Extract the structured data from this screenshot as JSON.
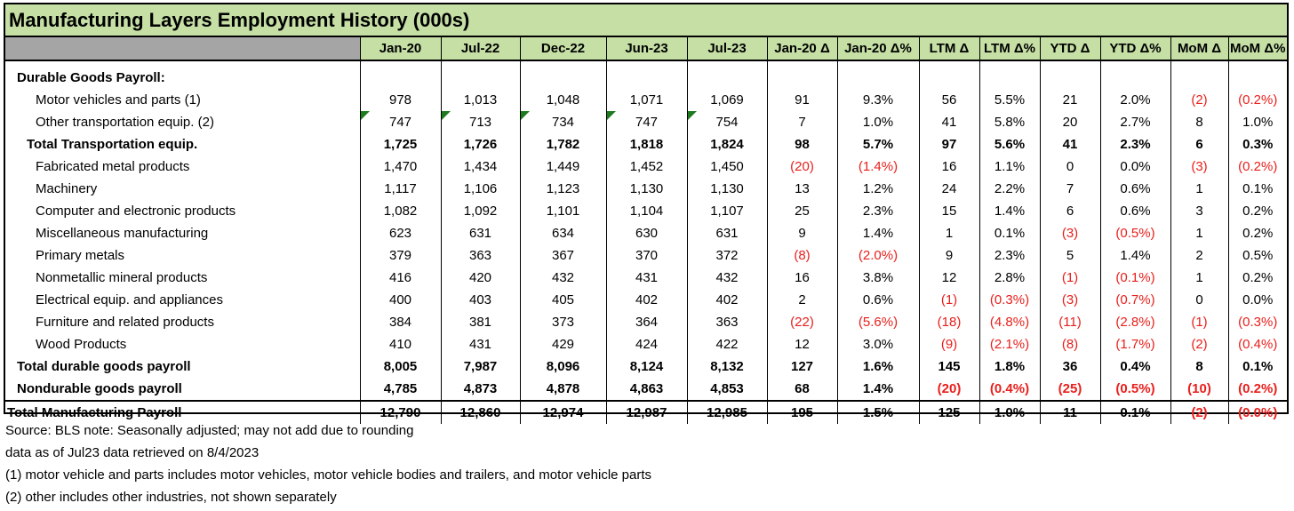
{
  "title": "Manufacturing Layers Employment History (000s)",
  "columns": [
    "Jan-20",
    "Jul-22",
    "Dec-22",
    "Jun-23",
    "Jul-23",
    "Jan-20 Δ",
    "Jan-20 Δ%",
    "LTM Δ",
    "LTM Δ%",
    "YTD Δ",
    "YTD Δ%",
    "MoM Δ",
    "MoM Δ%"
  ],
  "section_label": "Durable Goods Payroll:",
  "rows": [
    {
      "label": "Motor vehicles and parts (1)",
      "values": [
        "978",
        "1,013",
        "1,048",
        "1,071",
        "1,069",
        "91",
        "9.3%",
        "56",
        "5.5%",
        "21",
        "2.0%",
        "(2)",
        "(0.2%)"
      ]
    },
    {
      "label": "Other transportation equip. (2)",
      "values": [
        "747",
        "713",
        "734",
        "747",
        "754",
        "7",
        "1.0%",
        "41",
        "5.8%",
        "20",
        "2.7%",
        "8",
        "1.0%"
      ]
    },
    {
      "label": "Total Transportation equip.",
      "values": [
        "1,725",
        "1,726",
        "1,782",
        "1,818",
        "1,824",
        "98",
        "5.7%",
        "97",
        "5.6%",
        "41",
        "2.3%",
        "6",
        "0.3%"
      ]
    },
    {
      "label": "Fabricated metal products",
      "values": [
        "1,470",
        "1,434",
        "1,449",
        "1,452",
        "1,450",
        "(20)",
        "(1.4%)",
        "16",
        "1.1%",
        "0",
        "0.0%",
        "(3)",
        "(0.2%)"
      ]
    },
    {
      "label": "Machinery",
      "values": [
        "1,117",
        "1,106",
        "1,123",
        "1,130",
        "1,130",
        "13",
        "1.2%",
        "24",
        "2.2%",
        "7",
        "0.6%",
        "1",
        "0.1%"
      ]
    },
    {
      "label": "Computer and electronic products",
      "values": [
        "1,082",
        "1,092",
        "1,101",
        "1,104",
        "1,107",
        "25",
        "2.3%",
        "15",
        "1.4%",
        "6",
        "0.6%",
        "3",
        "0.2%"
      ]
    },
    {
      "label": "Miscellaneous manufacturing",
      "values": [
        "623",
        "631",
        "634",
        "630",
        "631",
        "9",
        "1.4%",
        "1",
        "0.1%",
        "(3)",
        "(0.5%)",
        "1",
        "0.2%"
      ]
    },
    {
      "label": "Primary metals",
      "values": [
        "379",
        "363",
        "367",
        "370",
        "372",
        "(8)",
        "(2.0%)",
        "9",
        "2.3%",
        "5",
        "1.4%",
        "2",
        "0.5%"
      ]
    },
    {
      "label": "Nonmetallic mineral products",
      "values": [
        "416",
        "420",
        "432",
        "431",
        "432",
        "16",
        "3.8%",
        "12",
        "2.8%",
        "(1)",
        "(0.1%)",
        "1",
        "0.2%"
      ]
    },
    {
      "label": "Electrical equip. and appliances",
      "values": [
        "400",
        "403",
        "405",
        "402",
        "402",
        "2",
        "0.6%",
        "(1)",
        "(0.3%)",
        "(3)",
        "(0.7%)",
        "0",
        "0.0%"
      ]
    },
    {
      "label": "Furniture and related products",
      "values": [
        "384",
        "381",
        "373",
        "364",
        "363",
        "(22)",
        "(5.6%)",
        "(18)",
        "(4.8%)",
        "(11)",
        "(2.8%)",
        "(1)",
        "(0.3%)"
      ]
    },
    {
      "label": "Wood Products",
      "values": [
        "410",
        "431",
        "429",
        "424",
        "422",
        "12",
        "3.0%",
        "(9)",
        "(2.1%)",
        "(8)",
        "(1.7%)",
        "(2)",
        "(0.4%)"
      ]
    },
    {
      "label": "Total durable goods payroll",
      "values": [
        "8,005",
        "7,987",
        "8,096",
        "8,124",
        "8,132",
        "127",
        "1.6%",
        "145",
        "1.8%",
        "36",
        "0.4%",
        "8",
        "0.1%"
      ]
    },
    {
      "label": "Nondurable goods payroll",
      "values": [
        "4,785",
        "4,873",
        "4,878",
        "4,863",
        "4,853",
        "68",
        "1.4%",
        "(20)",
        "(0.4%)",
        "(25)",
        "(0.5%)",
        "(10)",
        "(0.2%)"
      ]
    },
    {
      "label": "Total Manufacturing Payroll",
      "values": [
        "12,790",
        "12,860",
        "12,974",
        "12,987",
        "12,985",
        "195",
        "1.5%",
        "125",
        "1.0%",
        "11",
        "0.1%",
        "(2)",
        "(0.0%)"
      ]
    }
  ],
  "notes": [
    "Source: BLS     note: Seasonally adjusted; may not add due to rounding",
    "data as of Jul23      data retrieved on 8/4/2023",
    "(1) motor vehicle and parts includes motor vehicles, motor vehicle bodies and trailers, and motor vehicle parts",
    "(2) other includes other industries, not shown separately"
  ],
  "colors": {
    "header_green": "#c5dfa5",
    "header_gray": "#a5a5a5",
    "negative_red": "#e8201c",
    "indicator_green": "#1f7a1f"
  }
}
